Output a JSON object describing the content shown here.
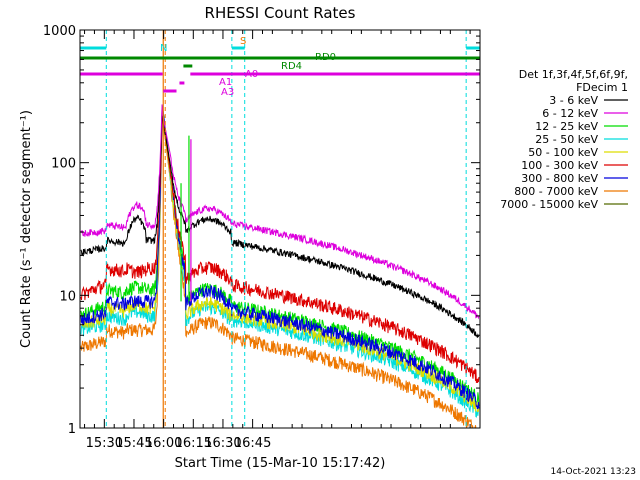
{
  "chart_data": {
    "type": "line",
    "title": "RHESSI Count Rates",
    "xlabel": "Start Time (15-Mar-10 15:17:42)",
    "ylabel": "Count Rate (s⁻¹ detector segment⁻¹)",
    "y_scale": "log",
    "ylim": [
      1,
      1000
    ],
    "xlim_minutes_of_day": [
      917.7,
      1120
    ],
    "x_ticks": [
      "15:30",
      "15:45",
      "16:00",
      "16:15",
      "16:30",
      "16:45"
    ],
    "x_tick_minutes": [
      930,
      945,
      960,
      975,
      990,
      1005
    ],
    "y_ticks": [
      "1",
      "10",
      "100",
      "1000"
    ],
    "legend_header": [
      "Det 1f,3f,4f,5f,6f,9f,",
      "FDecim 1"
    ],
    "legend_position": "right",
    "series": [
      {
        "name": "3 - 6 keV",
        "color": "#000000",
        "base": 21,
        "pre": 26,
        "pre_peak": 38,
        "post": 30,
        "peak": 260
      },
      {
        "name": "6 - 12 keV",
        "color": "#dd00dd",
        "base": 29,
        "pre": 34,
        "pre_peak": 48,
        "post": 36,
        "peak": 300
      },
      {
        "name": "12 - 25 keV",
        "color": "#00dd00",
        "base": 7,
        "pre": 11,
        "pre_peak": 11.5,
        "post": 9,
        "peak": 320
      },
      {
        "name": "25 - 50 keV",
        "color": "#00dddd",
        "base": 5.5,
        "pre": 7,
        "pre_peak": 7.5,
        "post": 6.5,
        "peak": 300
      },
      {
        "name": "50 - 100 keV",
        "color": "#dddd00",
        "base": 6,
        "pre": 8,
        "pre_peak": 8.5,
        "post": 7,
        "peak": 280
      },
      {
        "name": "100 - 300 keV",
        "color": "#dd0000",
        "base": 10,
        "pre": 16,
        "pre_peak": 15,
        "post": 13,
        "peak": 300
      },
      {
        "name": "300 - 800 keV",
        "color": "#0000dd",
        "base": 6.5,
        "pre": 9,
        "pre_peak": 9,
        "post": 8.5,
        "peak": 310
      },
      {
        "name": "800 - 7000 keV",
        "color": "#ee7700",
        "base": 4,
        "pre": 5.5,
        "pre_peak": 5.5,
        "post": 5,
        "peak": 260
      },
      {
        "name": "7000 - 15000 keV",
        "color": "#556b00",
        "base": 0,
        "pre": 0,
        "pre_peak": 0,
        "post": 0,
        "peak": 0
      }
    ],
    "annotations": [
      {
        "text": "N",
        "color": "#00dddd"
      },
      {
        "text": "S",
        "color": "#ee7700"
      },
      {
        "text": "RD0",
        "color": "#008800"
      },
      {
        "text": "RD4",
        "color": "#008800"
      },
      {
        "text": "A1",
        "color": "#dd00dd"
      },
      {
        "text": "A0",
        "color": "#dd00dd"
      },
      {
        "text": "A3",
        "color": "#dd00dd"
      }
    ],
    "flags": {
      "night_minutes": [
        [
          917.7,
          931
        ],
        [
          994.5,
          1001
        ],
        [
          1113,
          1120
        ]
      ],
      "saa_lines_minutes": [
        959.8,
        960.8
      ],
      "attenuator_levels_minutes": [
        [
          917.7,
          1120
        ]
      ],
      "rd0_minutes": [
        [
          917.7,
          1120
        ]
      ],
      "rd4_minutes": [
        [
          969.5,
          974.5
        ]
      ]
    }
  },
  "timestamp": "14-Oct-2021 13:23"
}
